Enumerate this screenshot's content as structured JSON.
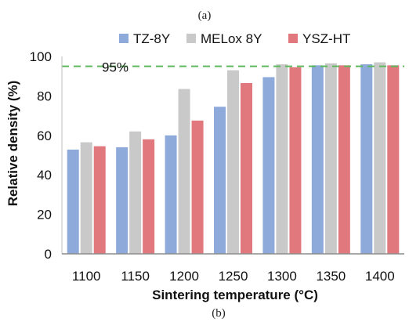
{
  "figure": {
    "top_caption": "(a)",
    "bottom_caption": "(b)"
  },
  "chart_data": {
    "type": "bar",
    "categories": [
      "1100",
      "1150",
      "1200",
      "1250",
      "1300",
      "1350",
      "1400"
    ],
    "series": [
      {
        "name": "TZ-8Y",
        "color": "#8eaadb",
        "values": [
          52.8,
          54.0,
          60.0,
          74.5,
          89.5,
          95.5,
          96.0
        ]
      },
      {
        "name": "MELox 8Y",
        "color": "#c9c9c9",
        "values": [
          56.5,
          62.0,
          83.5,
          93.0,
          96.0,
          96.5,
          97.0
        ]
      },
      {
        "name": "YSZ-HT",
        "color": "#e0787d",
        "values": [
          54.5,
          58.0,
          67.5,
          86.5,
          94.5,
          95.5,
          95.5
        ]
      }
    ],
    "xlabel": "Sintering temperature (°C)",
    "ylabel": "Relative density (%)",
    "ylim": [
      0,
      100
    ],
    "yticks": [
      0,
      20,
      40,
      60,
      80,
      100
    ],
    "grid": false,
    "legend_position": "top",
    "reference_line": {
      "value": 95,
      "label": "95%",
      "color": "#5cb85c",
      "style": "dashed"
    }
  }
}
